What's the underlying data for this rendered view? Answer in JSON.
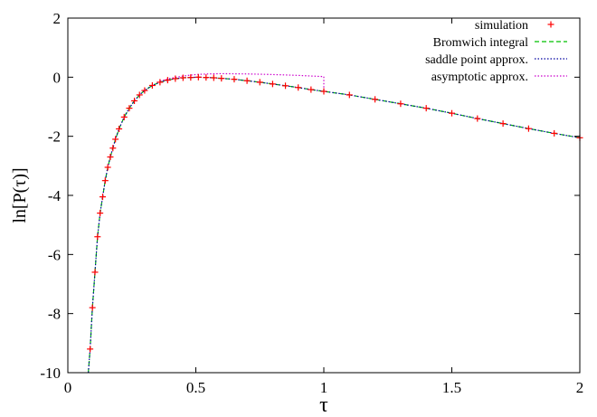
{
  "chart_data": {
    "type": "line",
    "xlabel": "τ",
    "ylabel": "ln[P(τ)]",
    "xlim": [
      0,
      2
    ],
    "ylim": [
      -10,
      2
    ],
    "xticks": [
      0,
      0.5,
      1,
      1.5,
      2
    ],
    "xtick_labels": [
      "0",
      "0.5",
      "1",
      "1.5",
      "2"
    ],
    "yticks": [
      -10,
      -8,
      -6,
      -4,
      -2,
      0,
      2
    ],
    "ytick_labels": [
      "-10",
      "-8",
      "-6",
      "-4",
      "-2",
      "0",
      "2"
    ],
    "grid": false,
    "legend_position": "top-right",
    "series": [
      {
        "name": "simulation",
        "style": "points",
        "marker": "plus",
        "color": "#ff0000",
        "x": [
          0.087,
          0.096,
          0.106,
          0.116,
          0.126,
          0.136,
          0.146,
          0.156,
          0.166,
          0.176,
          0.186,
          0.2,
          0.22,
          0.24,
          0.26,
          0.28,
          0.3,
          0.33,
          0.36,
          0.39,
          0.42,
          0.45,
          0.48,
          0.51,
          0.54,
          0.57,
          0.6,
          0.65,
          0.7,
          0.75,
          0.8,
          0.85,
          0.9,
          0.95,
          1.0,
          1.1,
          1.2,
          1.3,
          1.4,
          1.5,
          1.6,
          1.7,
          1.8,
          1.9,
          2.0
        ],
        "y": [
          -9.2,
          -7.8,
          -6.6,
          -5.4,
          -4.6,
          -4.05,
          -3.5,
          -3.05,
          -2.7,
          -2.4,
          -2.1,
          -1.75,
          -1.35,
          -1.05,
          -0.8,
          -0.6,
          -0.45,
          -0.28,
          -0.17,
          -0.1,
          -0.05,
          -0.02,
          -0.01,
          0.0,
          -0.01,
          -0.02,
          -0.04,
          -0.07,
          -0.12,
          -0.17,
          -0.23,
          -0.29,
          -0.35,
          -0.42,
          -0.48,
          -0.6,
          -0.75,
          -0.9,
          -1.05,
          -1.22,
          -1.4,
          -1.57,
          -1.74,
          -1.9,
          -2.05
        ]
      },
      {
        "name": "Bromwich integral",
        "style": "dashed",
        "color": "#00c000",
        "x": [
          0.08,
          0.087,
          0.096,
          0.106,
          0.116,
          0.126,
          0.136,
          0.146,
          0.156,
          0.166,
          0.176,
          0.186,
          0.2,
          0.22,
          0.24,
          0.26,
          0.28,
          0.3,
          0.33,
          0.36,
          0.39,
          0.42,
          0.45,
          0.48,
          0.51,
          0.54,
          0.57,
          0.6,
          0.65,
          0.7,
          0.75,
          0.8,
          0.85,
          0.9,
          0.95,
          1.0,
          1.1,
          1.2,
          1.3,
          1.4,
          1.5,
          1.6,
          1.7,
          1.8,
          1.9,
          2.0
        ],
        "y": [
          -10.0,
          -9.2,
          -7.8,
          -6.6,
          -5.4,
          -4.6,
          -4.05,
          -3.5,
          -3.05,
          -2.7,
          -2.4,
          -2.1,
          -1.75,
          -1.35,
          -1.05,
          -0.8,
          -0.6,
          -0.45,
          -0.28,
          -0.17,
          -0.1,
          -0.05,
          -0.02,
          -0.01,
          0.0,
          -0.01,
          -0.02,
          -0.04,
          -0.07,
          -0.12,
          -0.17,
          -0.23,
          -0.29,
          -0.35,
          -0.42,
          -0.48,
          -0.6,
          -0.75,
          -0.9,
          -1.05,
          -1.22,
          -1.4,
          -1.57,
          -1.74,
          -1.9,
          -2.05
        ]
      },
      {
        "name": "saddle point approx.",
        "style": "dotted",
        "color": "#0000a0",
        "x": [
          0.08,
          0.087,
          0.096,
          0.106,
          0.116,
          0.126,
          0.136,
          0.146,
          0.156,
          0.166,
          0.176,
          0.186,
          0.2,
          0.22,
          0.24,
          0.26,
          0.28,
          0.3,
          0.33,
          0.36,
          0.39,
          0.42,
          0.45,
          0.48,
          0.51,
          0.54,
          0.57,
          0.6,
          0.65,
          0.7,
          0.75,
          0.8,
          0.85,
          0.9,
          0.95,
          1.0,
          1.1,
          1.2,
          1.3,
          1.4,
          1.5,
          1.6,
          1.7,
          1.8,
          1.9,
          2.0
        ],
        "y": [
          -10.0,
          -9.2,
          -7.8,
          -6.6,
          -5.4,
          -4.6,
          -4.05,
          -3.5,
          -3.05,
          -2.7,
          -2.4,
          -2.1,
          -1.75,
          -1.35,
          -1.05,
          -0.8,
          -0.6,
          -0.45,
          -0.28,
          -0.17,
          -0.1,
          -0.05,
          -0.02,
          -0.01,
          0.0,
          -0.01,
          -0.02,
          -0.04,
          -0.07,
          -0.12,
          -0.17,
          -0.23,
          -0.29,
          -0.35,
          -0.42,
          -0.48,
          -0.6,
          -0.75,
          -0.9,
          -1.05,
          -1.22,
          -1.4,
          -1.57,
          -1.74,
          -1.9,
          -2.05
        ]
      },
      {
        "name": "asymptotic approx.",
        "style": "dotted",
        "color": "#cc00cc",
        "x": [
          0.36,
          0.4,
          0.45,
          0.5,
          0.55,
          0.6,
          0.7,
          0.8,
          0.9,
          1.0,
          1.0
        ],
        "y": [
          -0.13,
          -0.04,
          0.04,
          0.09,
          0.11,
          0.12,
          0.11,
          0.09,
          0.06,
          0.02,
          -0.45
        ]
      }
    ]
  }
}
